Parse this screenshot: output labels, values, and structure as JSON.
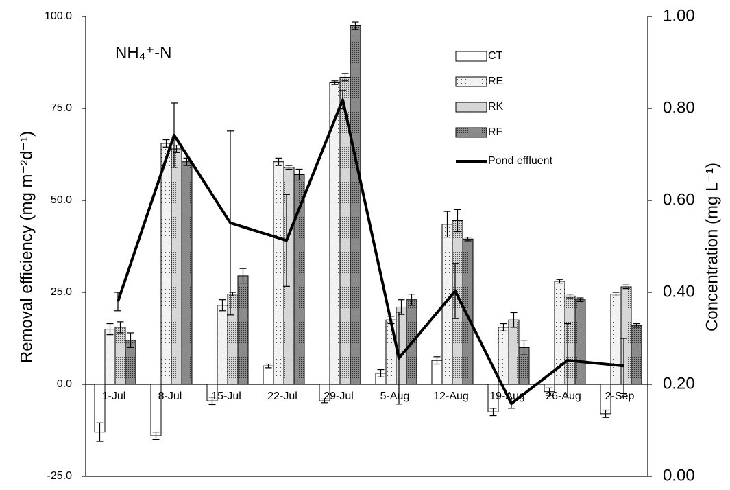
{
  "chart_data": {
    "type": "bar",
    "title": "NH₄⁺-N",
    "y_label": "Removal efficiency  (mg m⁻²d⁻¹)",
    "y2_label": "Concentration (mg L⁻¹)",
    "categories": [
      "1-Jul",
      "8-Jul",
      "15-Jul",
      "22-Jul",
      "29-Jul",
      "5-Aug",
      "12-Aug",
      "19-Aug",
      "26-Aug",
      "2-Sep"
    ],
    "series": [
      {
        "name": "CT",
        "color": "#ffffff",
        "values": [
          -13,
          -14,
          -4.5,
          5,
          -4.5,
          3,
          6.5,
          -7.5,
          -2,
          -8
        ],
        "errors": [
          2.5,
          1,
          1,
          0.5,
          0.5,
          1,
          1,
          1,
          1,
          1
        ]
      },
      {
        "name": "RE",
        "color": "#f2f2f2",
        "values": [
          15,
          65.5,
          21.5,
          60.5,
          82,
          17.5,
          43.5,
          15.5,
          28,
          24.5
        ],
        "errors": [
          1.5,
          1,
          1.5,
          1,
          0.5,
          1,
          3.5,
          1,
          0.5,
          0.5
        ]
      },
      {
        "name": "RK",
        "color": "#d6d6d6",
        "values": [
          15.5,
          64,
          24.5,
          59,
          83.5,
          21,
          44.5,
          17.5,
          24,
          26.5
        ],
        "errors": [
          1.5,
          1,
          0.5,
          0.5,
          1,
          2,
          3,
          2,
          0.5,
          0.5
        ]
      },
      {
        "name": "RF",
        "color": "#8a8a8a",
        "values": [
          12,
          60.5,
          29.5,
          57,
          97.5,
          23,
          39.5,
          10,
          23,
          16
        ],
        "errors": [
          2,
          1,
          2,
          1.5,
          1,
          1.5,
          0.5,
          2,
          0.5,
          0.5
        ]
      },
      {
        "name": "Pond effluent",
        "type": "line",
        "axis": "y2",
        "color": "#000000",
        "values": [
          0.38,
          0.742,
          0.551,
          0.513,
          0.819,
          0.257,
          0.403,
          0.158,
          0.252,
          0.24
        ],
        "errors": [
          0.02,
          0.07,
          0.2,
          0.1,
          0.02,
          0.1,
          0.06,
          0.01,
          0.08,
          0.06
        ]
      }
    ],
    "ylim": [
      -25,
      100
    ],
    "yticks": [
      {
        "value": -25,
        "label": "-25.0"
      },
      {
        "value": 0,
        "label": "0.0"
      },
      {
        "value": 25,
        "label": "25.0"
      },
      {
        "value": 50,
        "label": "50.0"
      },
      {
        "value": 75,
        "label": "75.0"
      },
      {
        "value": 100,
        "label": "100.0"
      }
    ],
    "y2lim": [
      0,
      1
    ],
    "y2ticks": [
      {
        "value": 0,
        "label": "0.00"
      },
      {
        "value": 0.2,
        "label": "0.20"
      },
      {
        "value": 0.4,
        "label": "0.40"
      },
      {
        "value": 0.6,
        "label": "0.60"
      },
      {
        "value": 0.8,
        "label": "0.80"
      },
      {
        "value": 1,
        "label": "1.00"
      }
    ]
  }
}
